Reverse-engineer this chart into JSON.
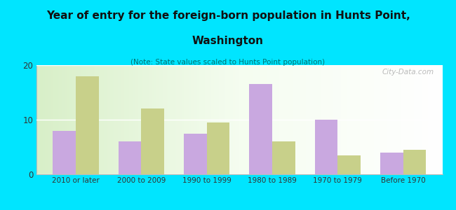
{
  "title_line1": "Year of entry for the foreign-born population in Hunts Point,",
  "title_line2": "Washington",
  "subtitle": "(Note: State values scaled to Hunts Point population)",
  "categories": [
    "2010 or later",
    "2000 to 2009",
    "1990 to 1999",
    "1980 to 1989",
    "1970 to 1979",
    "Before 1970"
  ],
  "hunts_point": [
    8,
    6,
    7.5,
    16.5,
    10,
    4
  ],
  "washington": [
    18,
    12,
    9.5,
    6,
    3.5,
    4.5
  ],
  "hunts_point_color": "#c9a8e0",
  "washington_color": "#c8d08a",
  "background_color": "#00e5ff",
  "ylim": [
    0,
    20
  ],
  "yticks": [
    0,
    10,
    20
  ],
  "bar_width": 0.35,
  "watermark": "City-Data.com"
}
